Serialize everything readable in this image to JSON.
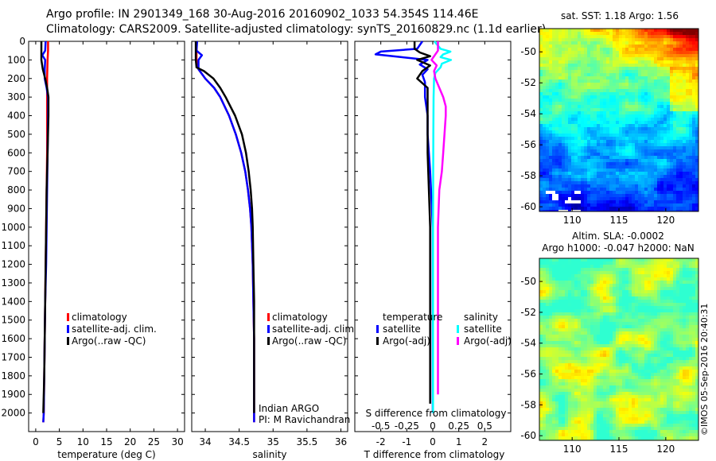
{
  "header": {
    "line1": "Argo profile: IN 2901349_168 30-Aug-2016 20160902_1033 54.354S 114.46E",
    "line2": "Climatology: CARS2009. Satellite-adjusted climatology: synTS_20160829.nc (1.1d earlier)"
  },
  "credit": "©IMOS 05-Sep-2016 20:40:31",
  "colors": {
    "climatology": "#ff0000",
    "satellite": "#0000ff",
    "argo": "#000000",
    "satellite_salinity": "#00ffff",
    "argo_salinity": "#ff00ff"
  },
  "chart_data": [
    {
      "id": "temperature",
      "type": "line",
      "xlabel": "temperature (deg C)",
      "ylabel": "",
      "xlim": [
        -1.5,
        31.5
      ],
      "ylim": [
        2100,
        0
      ],
      "xticks": [
        0,
        5,
        10,
        15,
        20,
        25,
        30
      ],
      "yticks": [
        0,
        100,
        200,
        300,
        400,
        500,
        600,
        700,
        800,
        900,
        1000,
        1100,
        1200,
        1300,
        1400,
        1500,
        1600,
        1700,
        1800,
        1900,
        2000
      ],
      "legend": [
        "climatology",
        "satellite-adj. clim.",
        "Argo(..raw -QC)"
      ],
      "series": [
        {
          "name": "climatology",
          "color": "#ff0000",
          "y": [
            0,
            50,
            100,
            200,
            400,
            600,
            800,
            1000,
            1200,
            1400,
            1600,
            1800,
            2000,
            2050
          ],
          "x": [
            2.6,
            2.6,
            2.5,
            2.4,
            2.4,
            2.4,
            2.3,
            2.2,
            2.1,
            2.0,
            1.9,
            1.8,
            1.7,
            1.6
          ]
        },
        {
          "name": "satellite-adj. clim.",
          "color": "#0000ff",
          "y": [
            0,
            50,
            75,
            100,
            150,
            200,
            250,
            300,
            400,
            600,
            800,
            1000,
            1200,
            1400,
            1600,
            1800,
            2000,
            2050
          ],
          "x": [
            2.1,
            2.0,
            1.4,
            2.0,
            1.9,
            1.9,
            2.3,
            2.6,
            2.6,
            2.5,
            2.4,
            2.3,
            2.2,
            2.0,
            1.9,
            1.8,
            1.7,
            1.6
          ]
        },
        {
          "name": "Argo(..raw -QC)",
          "color": "#000000",
          "y": [
            0,
            50,
            100,
            150,
            200,
            250,
            300,
            400,
            600,
            800,
            1000,
            1200,
            1400,
            1600,
            1800,
            2000
          ],
          "x": [
            1.2,
            1.2,
            1.2,
            1.5,
            2.0,
            2.4,
            2.7,
            2.7,
            2.5,
            2.3,
            2.2,
            2.1,
            2.0,
            1.9,
            1.8,
            1.6
          ]
        }
      ]
    },
    {
      "id": "salinity",
      "type": "line",
      "xlabel": "salinity",
      "ylabel": "",
      "xlim": [
        33.8,
        36.1
      ],
      "ylim": [
        2100,
        0
      ],
      "xticks": [
        34,
        34.5,
        35,
        35.5,
        36
      ],
      "xticklabels": [
        "34",
        "34.5",
        "35",
        "35.5",
        "36"
      ],
      "legend": [
        "climatology",
        "satellite-adj. clim.",
        "Argo(..raw -QC)"
      ],
      "annotation": [
        "Indian ARGO",
        "PI: M Ravichandran"
      ],
      "series": [
        {
          "name": "climatology",
          "color": "#ff0000",
          "y": [
            0,
            100,
            150,
            200,
            250,
            300,
            400,
            500,
            600,
            700,
            800,
            900,
            1000,
            1200,
            1400,
            1600,
            1800,
            2000,
            2050
          ],
          "x": [
            33.87,
            33.87,
            33.9,
            34.0,
            34.13,
            34.22,
            34.35,
            34.45,
            34.53,
            34.59,
            34.63,
            34.66,
            34.68,
            34.7,
            34.71,
            34.72,
            34.72,
            34.72,
            34.72
          ]
        },
        {
          "name": "satellite-adj. clim.",
          "color": "#0000ff",
          "y": [
            0,
            50,
            75,
            100,
            150,
            200,
            250,
            300,
            400,
            500,
            600,
            700,
            800,
            900,
            1000,
            1200,
            1400,
            1600,
            1800,
            2000,
            2050
          ],
          "x": [
            33.88,
            33.87,
            33.95,
            33.9,
            33.9,
            34.0,
            34.13,
            34.22,
            34.35,
            34.45,
            34.53,
            34.59,
            34.63,
            34.66,
            34.68,
            34.7,
            34.71,
            34.72,
            34.72,
            34.72,
            34.72
          ]
        },
        {
          "name": "Argo(..raw -QC)",
          "color": "#000000",
          "y": [
            0,
            100,
            140,
            160,
            200,
            250,
            300,
            400,
            500,
            600,
            700,
            800,
            900,
            1000,
            1200,
            1400,
            1600,
            1800,
            2000
          ],
          "x": [
            33.86,
            33.86,
            33.87,
            33.98,
            34.12,
            34.22,
            34.3,
            34.44,
            34.54,
            34.6,
            34.64,
            34.67,
            34.69,
            34.7,
            34.71,
            34.72,
            34.72,
            34.72,
            34.72
          ]
        }
      ]
    },
    {
      "id": "difference",
      "type": "line",
      "xlabel": "T difference from climatology",
      "title_inner": "S difference from climatology",
      "xlim": [
        -3,
        3
      ],
      "ylim": [
        2100,
        0
      ],
      "xticks": [
        -2,
        -1,
        0,
        1,
        2
      ],
      "top_ticks": [
        -0.5,
        -0.25,
        0,
        0.25,
        0.5
      ],
      "top_ticklabels": [
        "-0.5",
        "-0.25",
        "0",
        "0.25",
        "0.5"
      ],
      "legend": {
        "temperature_header": "temperature",
        "salinity_header": "salinity",
        "items": [
          "satellite",
          "Argo(-adj)",
          "satellite",
          "Argo(-adj)"
        ]
      },
      "series": [
        {
          "name": "temperature satellite",
          "color": "#0000ff",
          "y": [
            0,
            40,
            55,
            70,
            85,
            100,
            125,
            150,
            180,
            220,
            300,
            400,
            500,
            700,
            1000,
            1500,
            2000
          ],
          "x": [
            -0.4,
            -0.6,
            -2.0,
            -2.2,
            -1.2,
            -0.2,
            -0.5,
            -0.2,
            -0.4,
            -0.3,
            -0.3,
            -0.2,
            -0.2,
            -0.1,
            0,
            0,
            0
          ]
        },
        {
          "name": "temperature Argo(-adj)",
          "color": "#000000",
          "y": [
            0,
            40,
            60,
            80,
            100,
            130,
            160,
            200,
            250,
            300,
            400,
            600,
            1000,
            1500,
            1950
          ],
          "x": [
            -0.7,
            -0.7,
            -0.5,
            -0.1,
            -0.6,
            -0.1,
            -0.4,
            -0.6,
            -0.2,
            -0.2,
            -0.2,
            -0.2,
            -0.1,
            -0.1,
            -0.1
          ]
        },
        {
          "name": "salinity satellite",
          "color": "#00ffff",
          "y": [
            0,
            40,
            55,
            70,
            85,
            100,
            120,
            140,
            170,
            200,
            300,
            500,
            1000,
            1500,
            2000
          ],
          "x": [
            0.06,
            0.3,
            0.68,
            0.4,
            0.3,
            0.7,
            0.35,
            0.3,
            0.1,
            0.05,
            0.03,
            0.02,
            0.01,
            0.01,
            0.01
          ]
        },
        {
          "name": "salinity Argo(-adj)",
          "color": "#ff00ff",
          "y": [
            0,
            50,
            100,
            130,
            160,
            200,
            250,
            300,
            350,
            400,
            500,
            600,
            700,
            800,
            1000,
            1500,
            1900
          ],
          "x": [
            0.2,
            0.2,
            -0.05,
            0.15,
            0.05,
            0.1,
            0.25,
            0.4,
            0.5,
            0.5,
            0.45,
            0.4,
            0.35,
            0.25,
            0.2,
            0.2,
            0.2
          ]
        }
      ]
    },
    {
      "id": "sst_map",
      "type": "heatmap",
      "title": "sat. SST: 1.18 Argo: 1.56",
      "xlim": [
        106.5,
        123.5
      ],
      "ylim": [
        -60.3,
        -48.5
      ],
      "xticks": [
        110,
        115,
        120
      ],
      "yticks": [
        -50,
        -52,
        -54,
        -56,
        -58,
        -60
      ]
    },
    {
      "id": "sla_map",
      "type": "heatmap",
      "title_lines": [
        "Altim. SLA: -0.0002",
        "Argo h1000: -0.047 h2000: NaN"
      ],
      "xlim": [
        106.5,
        123.5
      ],
      "ylim": [
        -60.3,
        -48.5
      ],
      "xticks": [
        110,
        115,
        120
      ],
      "yticks": [
        -50,
        -52,
        -54,
        -56,
        -58,
        -60
      ]
    }
  ]
}
